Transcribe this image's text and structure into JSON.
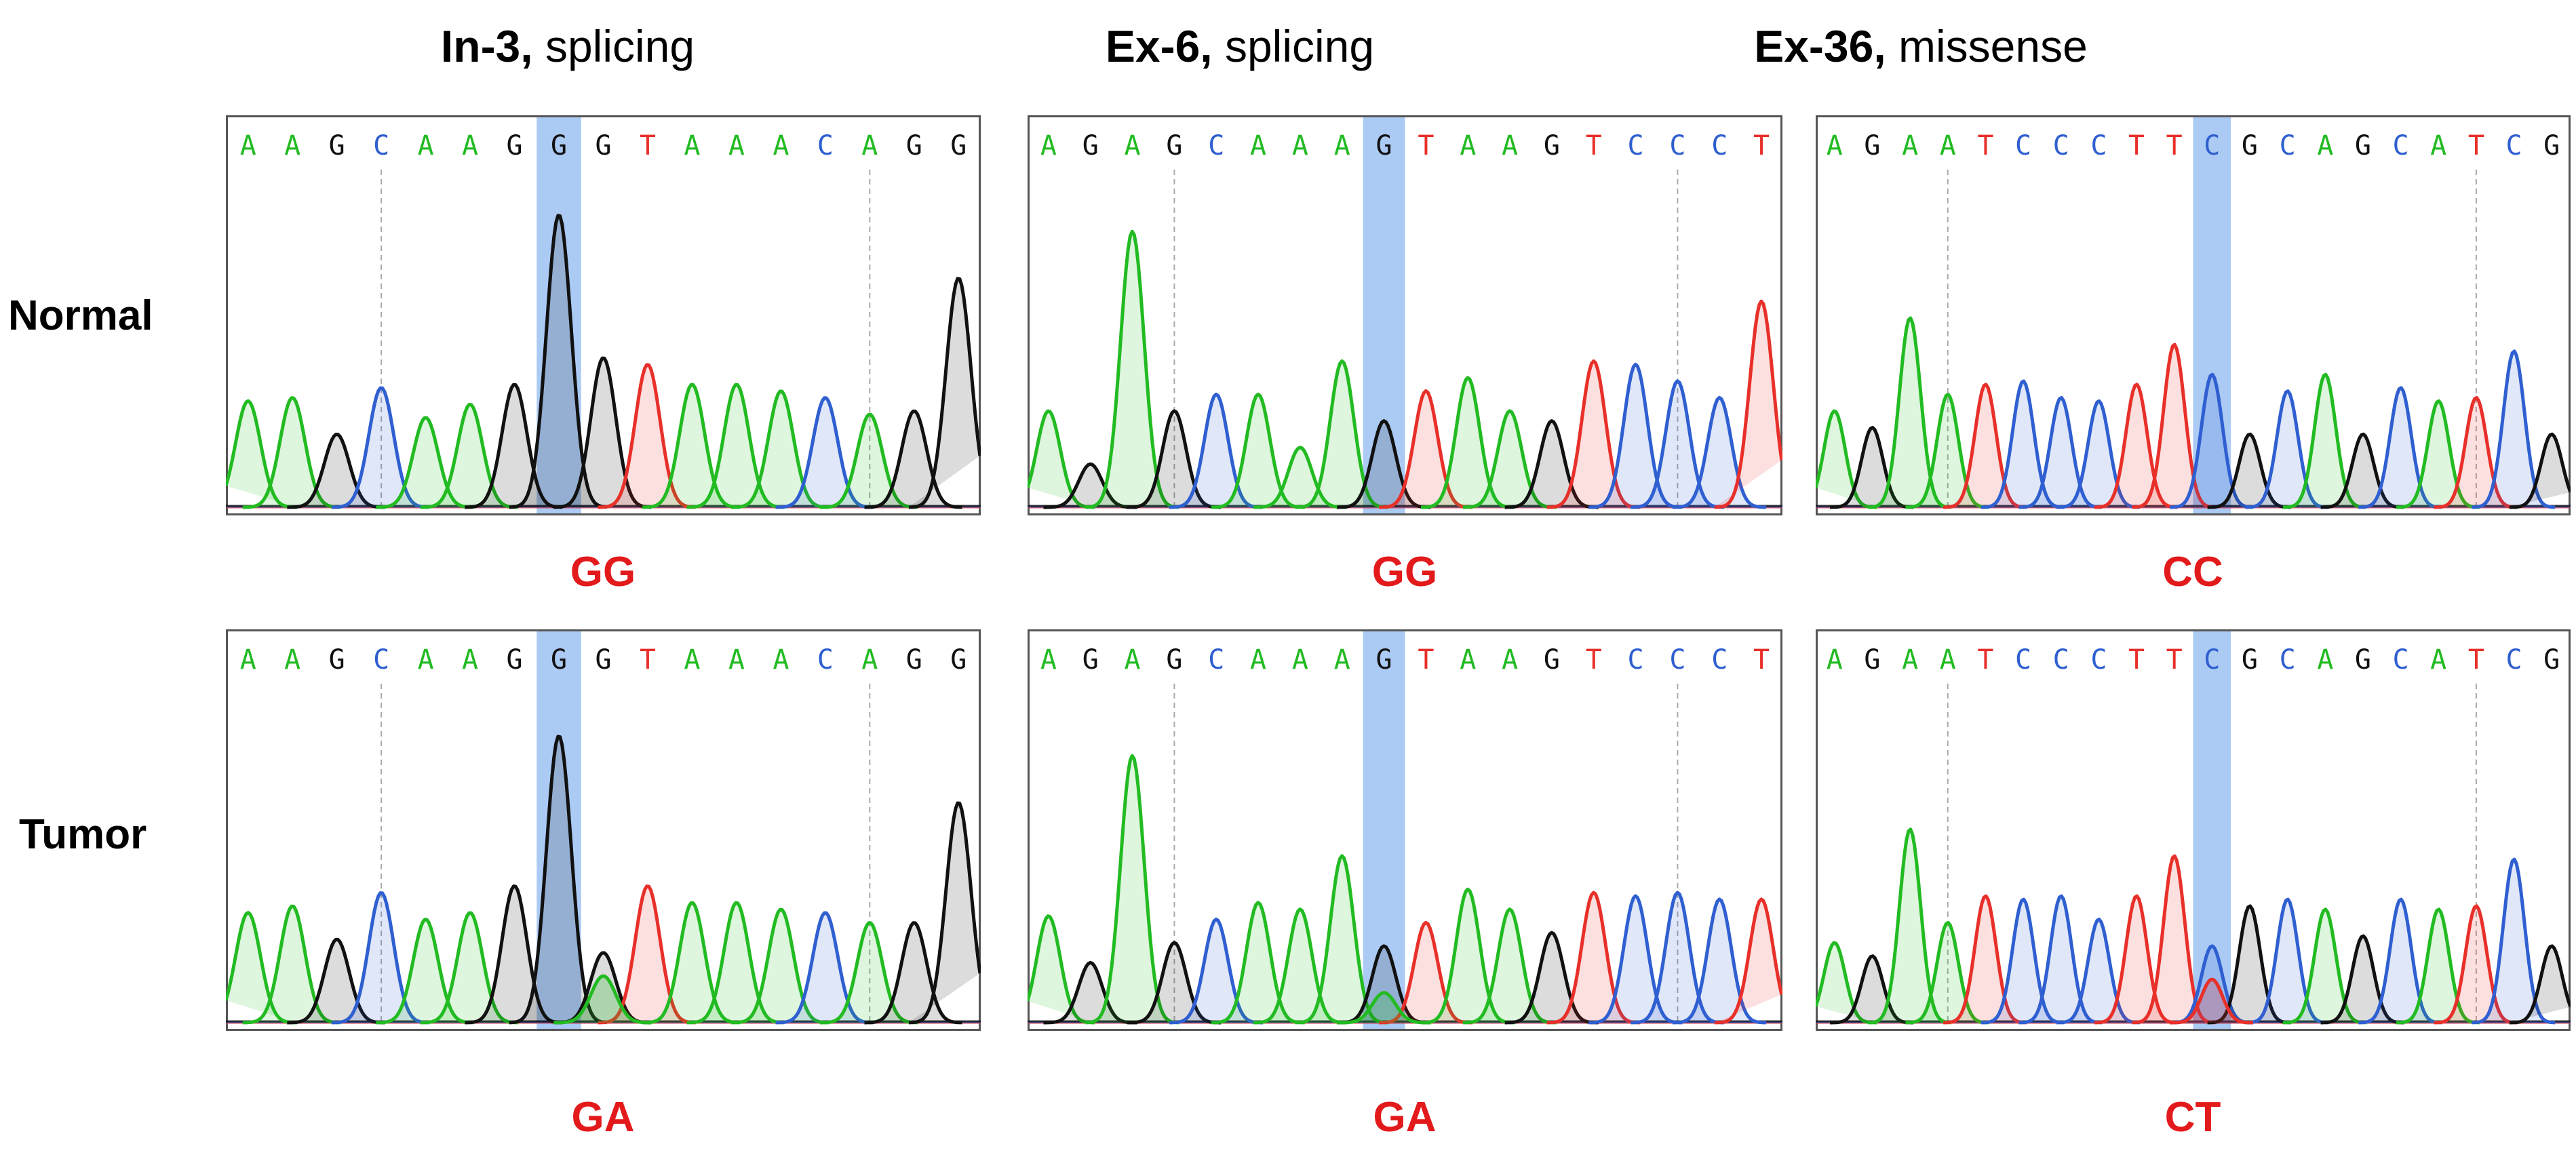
{
  "figure": {
    "row_labels": [
      "Normal",
      "Tumor"
    ]
  },
  "colors": {
    "A": "#22bb22",
    "C": "#2f5fd0",
    "G": "#111111",
    "T": "#e8302a",
    "highlight": "#8fb8f0",
    "genotype": "#e31a1c"
  },
  "chart_data": [
    {
      "type": "chromatogram",
      "title_bold": "In-3,",
      "title_rest": " splicing",
      "normal": {
        "sequence": [
          "A",
          "A",
          "G",
          "C",
          "A",
          "A",
          "G",
          "G",
          "G",
          "T",
          "A",
          "A",
          "A",
          "C",
          "A",
          "G",
          "G"
        ],
        "highlight_index": 7,
        "peak_heights": [
          0.32,
          0.33,
          0.22,
          0.36,
          0.27,
          0.31,
          0.37,
          0.88,
          0.45,
          0.43,
          0.37,
          0.37,
          0.35,
          0.33,
          0.28,
          0.29,
          0.69
        ],
        "secondary_peaks": [],
        "genotype": "GG"
      },
      "tumor": {
        "sequence": [
          "A",
          "A",
          "G",
          "C",
          "A",
          "A",
          "G",
          "G",
          "G",
          "T",
          "A",
          "A",
          "A",
          "C",
          "A",
          "G",
          "G"
        ],
        "highlight_index": 7,
        "peak_heights": [
          0.33,
          0.35,
          0.25,
          0.39,
          0.31,
          0.33,
          0.41,
          0.86,
          0.21,
          0.41,
          0.36,
          0.36,
          0.34,
          0.33,
          0.3,
          0.3,
          0.66
        ],
        "secondary_peaks": [
          {
            "index": 8,
            "base": "A",
            "height": 0.14
          }
        ],
        "genotype": "GA"
      }
    },
    {
      "type": "chromatogram",
      "title_bold": "Ex-6,",
      "title_rest": " splicing",
      "normal": {
        "sequence": [
          "A",
          "G",
          "A",
          "G",
          "C",
          "A",
          "A",
          "A",
          "G",
          "T",
          "A",
          "A",
          "G",
          "T",
          "C",
          "C",
          "C",
          "T"
        ],
        "highlight_index": 8,
        "peak_heights": [
          0.29,
          0.13,
          0.83,
          0.29,
          0.34,
          0.34,
          0.18,
          0.44,
          0.26,
          0.35,
          0.39,
          0.29,
          0.26,
          0.44,
          0.43,
          0.38,
          0.33,
          0.62
        ],
        "secondary_peaks": [],
        "genotype": "GG"
      },
      "tumor": {
        "sequence": [
          "A",
          "G",
          "A",
          "G",
          "C",
          "A",
          "A",
          "A",
          "G",
          "T",
          "A",
          "A",
          "G",
          "T",
          "C",
          "C",
          "C",
          "T"
        ],
        "highlight_index": 8,
        "peak_heights": [
          0.32,
          0.18,
          0.8,
          0.24,
          0.31,
          0.36,
          0.34,
          0.5,
          0.23,
          0.3,
          0.4,
          0.34,
          0.27,
          0.39,
          0.38,
          0.39,
          0.37,
          0.37
        ],
        "secondary_peaks": [
          {
            "index": 8,
            "base": "A",
            "height": 0.09
          }
        ],
        "genotype": "GA"
      }
    },
    {
      "type": "chromatogram",
      "title_bold": "Ex-36,",
      "title_rest": " missense",
      "normal": {
        "sequence": [
          "A",
          "G",
          "A",
          "A",
          "T",
          "C",
          "C",
          "C",
          "T",
          "T",
          "C",
          "G",
          "C",
          "A",
          "G",
          "C",
          "A",
          "T",
          "C",
          "G"
        ],
        "highlight_index": 10,
        "peak_heights": [
          0.29,
          0.24,
          0.57,
          0.34,
          0.37,
          0.38,
          0.33,
          0.32,
          0.37,
          0.49,
          0.4,
          0.22,
          0.35,
          0.4,
          0.22,
          0.36,
          0.32,
          0.33,
          0.47,
          0.22
        ],
        "secondary_peaks": [],
        "genotype": "CC"
      },
      "tumor": {
        "sequence": [
          "A",
          "G",
          "A",
          "A",
          "T",
          "C",
          "C",
          "C",
          "T",
          "T",
          "C",
          "G",
          "C",
          "A",
          "G",
          "C",
          "A",
          "T",
          "C",
          "G"
        ],
        "highlight_index": 10,
        "peak_heights": [
          0.24,
          0.2,
          0.58,
          0.3,
          0.38,
          0.37,
          0.38,
          0.31,
          0.38,
          0.5,
          0.23,
          0.35,
          0.37,
          0.34,
          0.26,
          0.37,
          0.34,
          0.35,
          0.49,
          0.23
        ],
        "secondary_peaks": [
          {
            "index": 10,
            "base": "T",
            "height": 0.13
          }
        ],
        "genotype": "CT"
      }
    }
  ]
}
